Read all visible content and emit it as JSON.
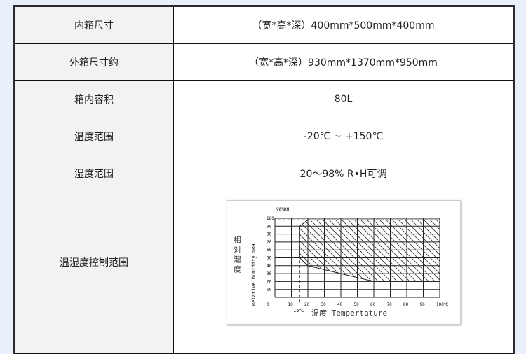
{
  "rows": [
    {
      "label": "内箱尺寸",
      "value": "（宽*高*深）400mm*500mm*400mm"
    },
    {
      "label": "外箱尺寸约",
      "value": "（宽*高*深）930mm*1370mm*950mm"
    },
    {
      "label": "箱内容积",
      "value": "80L"
    },
    {
      "label": "温度范围",
      "value": "-20℃ ~ +150℃"
    },
    {
      "label": "湿度范围",
      "value": "20～98% R•H可调"
    },
    {
      "label": "温湿度控制范围"
    }
  ],
  "figure": {
    "x_ticks": [
      "0",
      "10",
      "20",
      "30",
      "40",
      "50",
      "60",
      "70",
      "80",
      "90",
      "100℃"
    ],
    "y_ticks": [
      "10",
      "20",
      "30",
      "40",
      "50",
      "60",
      "70",
      "80",
      "90",
      "100"
    ],
    "marker_98": "98%RH",
    "marker_15": "15℃",
    "xlabel": "温度 Tempertature",
    "ylabel_cn": "相对湿度",
    "ylabel_en": "Relative humidity %RH",
    "region": [
      [
        15,
        50
      ],
      [
        15,
        90
      ],
      [
        20,
        98
      ],
      [
        100,
        98
      ],
      [
        100,
        20
      ],
      [
        60,
        20
      ],
      [
        40,
        30
      ],
      [
        20,
        40
      ]
    ]
  }
}
